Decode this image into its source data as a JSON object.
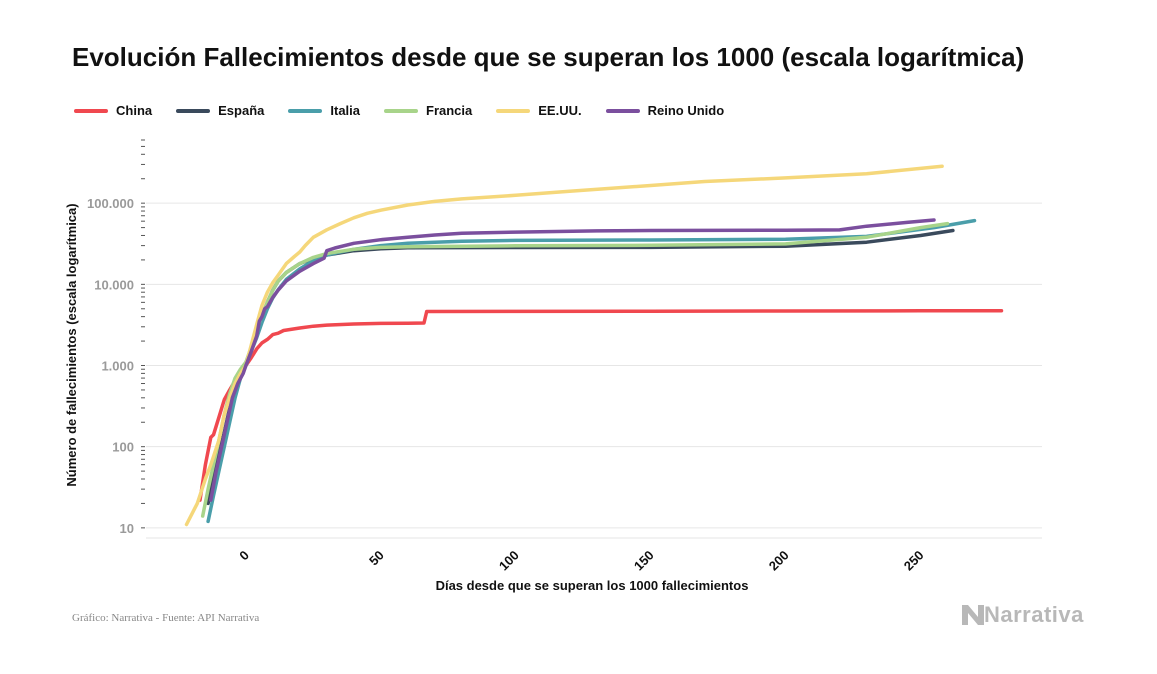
{
  "header": {
    "title": "Evolución Fallecimientos desde que se superan los 1000 (escala logarítmica)"
  },
  "footer": {
    "source": "Gráfico: Narrativa - Fuente: API Narrativa",
    "logo_text": "Narrativa"
  },
  "chart_data": {
    "type": "line",
    "title": "Evolución Fallecimientos desde que se superan los 1000 (escala logarítmica)",
    "xlabel": "Días desde que se superan los 1000 fallecimientos",
    "ylabel": "Número de fallecimientos (escala logarítmica)",
    "yscale": "log",
    "xlim": [
      -37,
      295
    ],
    "ylim": [
      7.5,
      600000
    ],
    "xticks": [
      0,
      50,
      100,
      150,
      200,
      250
    ],
    "xtick_labels": [
      "0",
      "50",
      "100",
      "150",
      "200",
      "250"
    ],
    "yticks": [
      10,
      100,
      1000,
      10000,
      100000
    ],
    "ytick_labels": [
      "10",
      "100",
      "1.000",
      "10.000",
      "100.000"
    ],
    "grid": "horizontal",
    "legend_position": "top",
    "series": [
      {
        "name": "China",
        "color": "#f0484f",
        "points": [
          [
            -17,
            22
          ],
          [
            -15,
            60
          ],
          [
            -13,
            130
          ],
          [
            -12,
            140
          ],
          [
            -10,
            230
          ],
          [
            -8,
            380
          ],
          [
            -6,
            500
          ],
          [
            -4,
            650
          ],
          [
            -2,
            830
          ],
          [
            0,
            1000
          ],
          [
            2,
            1250
          ],
          [
            4,
            1600
          ],
          [
            6,
            1900
          ],
          [
            8,
            2100
          ],
          [
            10,
            2400
          ],
          [
            12,
            2500
          ],
          [
            14,
            2700
          ],
          [
            20,
            2900
          ],
          [
            25,
            3050
          ],
          [
            30,
            3150
          ],
          [
            40,
            3250
          ],
          [
            50,
            3300
          ],
          [
            60,
            3320
          ],
          [
            66,
            3340
          ],
          [
            67,
            4630
          ],
          [
            100,
            4640
          ],
          [
            150,
            4660
          ],
          [
            200,
            4700
          ],
          [
            250,
            4720
          ],
          [
            280,
            4730
          ]
        ]
      },
      {
        "name": "España",
        "color": "#3a4a5c",
        "points": [
          [
            -14,
            20
          ],
          [
            -12,
            40
          ],
          [
            -10,
            80
          ],
          [
            -8,
            150
          ],
          [
            -6,
            300
          ],
          [
            -4,
            500
          ],
          [
            -2,
            750
          ],
          [
            0,
            1000
          ],
          [
            2,
            1600
          ],
          [
            4,
            2500
          ],
          [
            6,
            4000
          ],
          [
            8,
            6000
          ],
          [
            10,
            8500
          ],
          [
            12,
            11000
          ],
          [
            15,
            14000
          ],
          [
            20,
            18000
          ],
          [
            25,
            21000
          ],
          [
            30,
            23000
          ],
          [
            40,
            26000
          ],
          [
            50,
            27500
          ],
          [
            60,
            28300
          ],
          [
            100,
            28400
          ],
          [
            150,
            28500
          ],
          [
            200,
            29500
          ],
          [
            230,
            33000
          ],
          [
            250,
            40000
          ],
          [
            262,
            46000
          ]
        ]
      },
      {
        "name": "Italia",
        "color": "#4a9eaa",
        "points": [
          [
            -14,
            12
          ],
          [
            -12,
            25
          ],
          [
            -10,
            50
          ],
          [
            -8,
            100
          ],
          [
            -6,
            200
          ],
          [
            -4,
            400
          ],
          [
            -2,
            700
          ],
          [
            0,
            1000
          ],
          [
            2,
            1500
          ],
          [
            4,
            2200
          ],
          [
            6,
            3400
          ],
          [
            8,
            5000
          ],
          [
            10,
            6800
          ],
          [
            12,
            8600
          ],
          [
            15,
            11500
          ],
          [
            20,
            15500
          ],
          [
            25,
            19500
          ],
          [
            30,
            23000
          ],
          [
            35,
            25000
          ],
          [
            40,
            27000
          ],
          [
            50,
            30000
          ],
          [
            60,
            32000
          ],
          [
            80,
            34000
          ],
          [
            100,
            34800
          ],
          [
            150,
            35200
          ],
          [
            200,
            36000
          ],
          [
            230,
            39000
          ],
          [
            255,
            50000
          ],
          [
            270,
            61000
          ]
        ]
      },
      {
        "name": "Francia",
        "color": "#a8d48a",
        "points": [
          [
            -16,
            14
          ],
          [
            -14,
            30
          ],
          [
            -12,
            60
          ],
          [
            -10,
            120
          ],
          [
            -8,
            250
          ],
          [
            -6,
            450
          ],
          [
            -4,
            700
          ],
          [
            -2,
            900
          ],
          [
            0,
            1100
          ],
          [
            2,
            1700
          ],
          [
            4,
            2800
          ],
          [
            6,
            4200
          ],
          [
            8,
            6000
          ],
          [
            10,
            8500
          ],
          [
            12,
            11000
          ],
          [
            15,
            14000
          ],
          [
            20,
            18000
          ],
          [
            25,
            21500
          ],
          [
            30,
            24000
          ],
          [
            40,
            27000
          ],
          [
            50,
            28500
          ],
          [
            60,
            29000
          ],
          [
            100,
            29800
          ],
          [
            150,
            30300
          ],
          [
            200,
            31500
          ],
          [
            230,
            38000
          ],
          [
            250,
            50000
          ],
          [
            260,
            56000
          ]
        ]
      },
      {
        "name": "EE.UU.",
        "color": "#f5d77a",
        "points": [
          [
            -22,
            11
          ],
          [
            -18,
            20
          ],
          [
            -15,
            40
          ],
          [
            -13,
            60
          ],
          [
            -10,
            120
          ],
          [
            -8,
            250
          ],
          [
            -6,
            400
          ],
          [
            -4,
            600
          ],
          [
            -2,
            800
          ],
          [
            0,
            1000
          ],
          [
            2,
            1800
          ],
          [
            4,
            3200
          ],
          [
            6,
            5500
          ],
          [
            8,
            8000
          ],
          [
            10,
            10500
          ],
          [
            12,
            13000
          ],
          [
            15,
            18000
          ],
          [
            18,
            22000
          ],
          [
            20,
            25000
          ],
          [
            22,
            30000
          ],
          [
            25,
            38000
          ],
          [
            30,
            47000
          ],
          [
            35,
            56000
          ],
          [
            40,
            66000
          ],
          [
            45,
            75000
          ],
          [
            50,
            82000
          ],
          [
            60,
            95000
          ],
          [
            70,
            105000
          ],
          [
            80,
            113000
          ],
          [
            100,
            125000
          ],
          [
            120,
            140000
          ],
          [
            150,
            165000
          ],
          [
            170,
            185000
          ],
          [
            200,
            205000
          ],
          [
            230,
            230000
          ],
          [
            258,
            285000
          ]
        ]
      },
      {
        "name": "Reino Unido",
        "color": "#7b4f9e",
        "points": [
          [
            -13,
            22
          ],
          [
            -11,
            50
          ],
          [
            -9,
            100
          ],
          [
            -7,
            200
          ],
          [
            -5,
            400
          ],
          [
            -3,
            600
          ],
          [
            -1,
            800
          ],
          [
            0,
            1000
          ],
          [
            2,
            1500
          ],
          [
            4,
            2300
          ],
          [
            5,
            3500
          ],
          [
            6,
            4000
          ],
          [
            7,
            5000
          ],
          [
            8,
            5300
          ],
          [
            10,
            6900
          ],
          [
            12,
            8500
          ],
          [
            15,
            11000
          ],
          [
            20,
            14500
          ],
          [
            25,
            18000
          ],
          [
            29,
            21000
          ],
          [
            30,
            26000
          ],
          [
            33,
            28000
          ],
          [
            40,
            32000
          ],
          [
            50,
            35500
          ],
          [
            60,
            38000
          ],
          [
            70,
            40500
          ],
          [
            80,
            42500
          ],
          [
            100,
            44000
          ],
          [
            130,
            45500
          ],
          [
            150,
            46000
          ],
          [
            200,
            46500
          ],
          [
            220,
            46800
          ],
          [
            230,
            52000
          ],
          [
            245,
            58000
          ],
          [
            255,
            62000
          ]
        ]
      }
    ]
  }
}
